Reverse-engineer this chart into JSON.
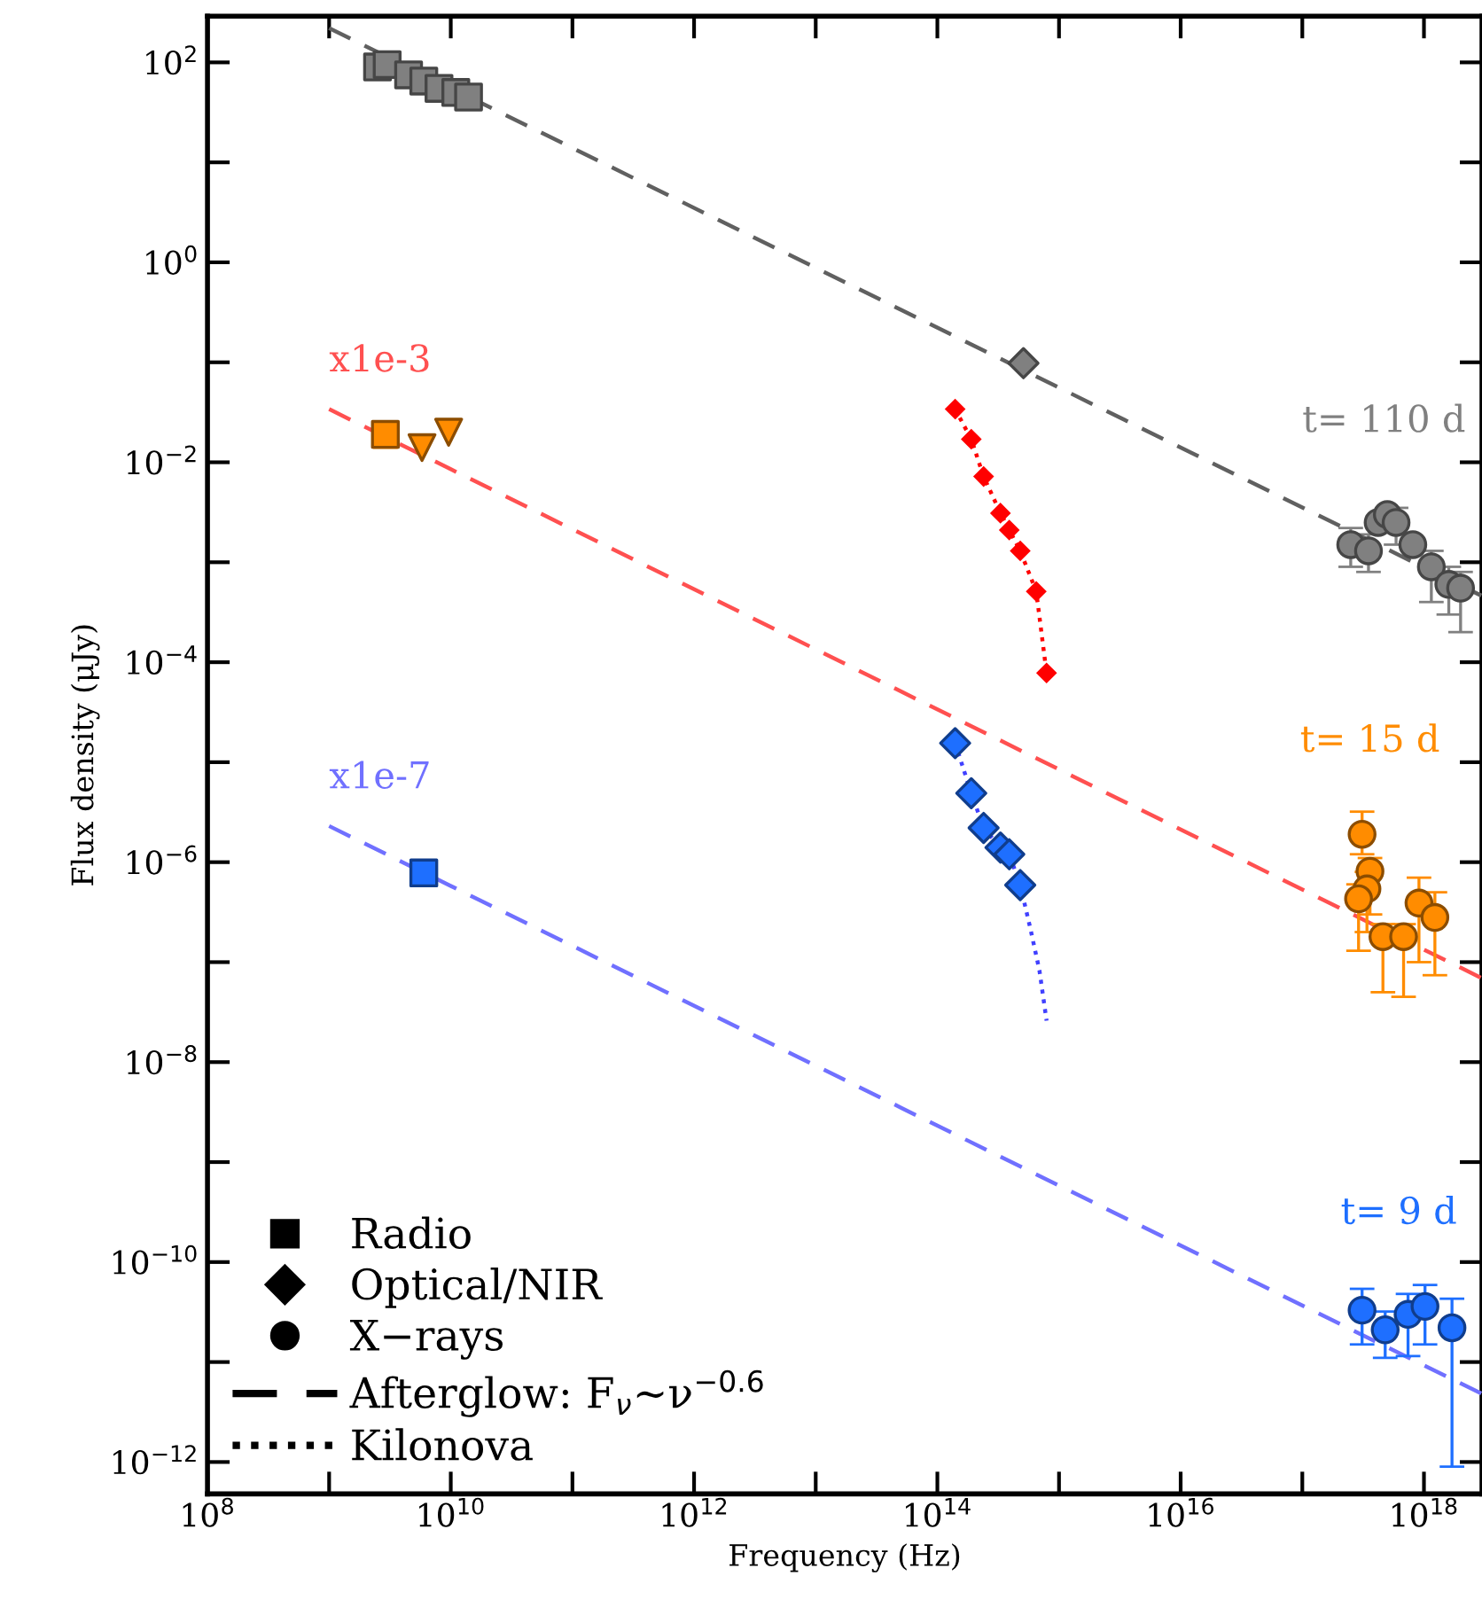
{
  "chart_data": {
    "type": "scatter",
    "xlabel": "Frequency (Hz)",
    "ylabel": "Flux density (μJy)",
    "log": "xy",
    "xlim": [
      100000000.0,
      3e+18
    ],
    "ylim": [
      4.8e-13,
      290
    ],
    "xticks": [
      {
        "value": 100000000.0,
        "label": "10$^{8}$"
      },
      {
        "value": 1000000000.0,
        "label": null
      },
      {
        "value": 10000000000.0,
        "label": "10$^{10}$"
      },
      {
        "value": 100000000000.0,
        "label": null
      },
      {
        "value": 1000000000000.0,
        "label": "10$^{12}$"
      },
      {
        "value": 10000000000000.0,
        "label": null
      },
      {
        "value": 100000000000000.0,
        "label": "10$^{14}$"
      },
      {
        "value": 1000000000000000.0,
        "label": null
      },
      {
        "value": 1e+16,
        "label": "10$^{16}$"
      },
      {
        "value": 1e+17,
        "label": null
      },
      {
        "value": 1e+18,
        "label": "10$^{18}$"
      }
    ],
    "yticks": [
      {
        "value": 1e-12,
        "label": "10$^{−12}$"
      },
      {
        "value": 1e-11,
        "label": null
      },
      {
        "value": 1e-10,
        "label": "10$^{−10}$"
      },
      {
        "value": 1e-09,
        "label": null
      },
      {
        "value": 1e-08,
        "label": "10$^{−8}$"
      },
      {
        "value": 1e-07,
        "label": null
      },
      {
        "value": 1e-06,
        "label": "10$^{−6}$"
      },
      {
        "value": 1e-05,
        "label": null
      },
      {
        "value": 0.0001,
        "label": "10$^{−4}$"
      },
      {
        "value": 0.001,
        "label": null
      },
      {
        "value": 0.01,
        "label": "10$^{−2}$"
      },
      {
        "value": 0.1,
        "label": null
      },
      {
        "value": 1,
        "label": "10$^{0}$"
      },
      {
        "value": 10,
        "label": null
      },
      {
        "value": 100,
        "label": "10$^{2}$"
      }
    ],
    "grid": false,
    "legend": "bottom left",
    "annotations": [
      "Radio",
      "Optical/NIR",
      "X−rays",
      "Afterglow: F$_{ν}$∼ν$^{−0.6}$",
      "Kilonova"
    ],
    "series": [
      {
        "marker": "square",
        "color": "#808080",
        "x": [
          2500000000.0,
          3000000000.0,
          4500000000.0,
          6000000000.0,
          8000000000.0,
          11000000000.0,
          14000000000.0
        ],
        "values": [
          90,
          95,
          75,
          65,
          55,
          50,
          45
        ]
      },
      {
        "marker": "diamond",
        "color": "#808080",
        "x": [
          510000000000000.0
        ],
        "values": [
          0.098
        ]
      },
      {
        "name": "t= 110 d",
        "marker": "circle",
        "color": "#808080",
        "x": [
          2.5e+17,
          3.5e+17,
          4.2e+17,
          5e+17,
          5.9e+17,
          8.1e+17,
          1.15e+18,
          1.6e+18,
          2e+18
        ],
        "values": [
          0.0015,
          0.0013,
          0.0025,
          0.003,
          0.0025,
          0.0015,
          0.0009,
          0.0006,
          0.00055
        ],
        "errors": [
          [
            0.0009,
            0.0022
          ],
          [
            0.0008,
            0.0019
          ],
          null,
          null,
          [
            0.0015,
            0.0035
          ],
          null,
          [
            0.0004,
            0.0013
          ],
          [
            0.0003,
            0.0009
          ],
          [
            0.0002,
            0.0008
          ]
        ]
      },
      {
        "type": "line",
        "line_style": "dashed",
        "marker": "none",
        "color": "#606060",
        "x": [
          1000000000.0,
          3e+18
        ],
        "values": [
          220,
          0.00046
        ]
      },
      {
        "type": "line",
        "line_style": "dotted",
        "marker": "diamond",
        "color": "#ff0000",
        "x": [
          140000000000000.0,
          190000000000000.0,
          240000000000000.0,
          330000000000000.0,
          390000000000000.0,
          480000000000000.0,
          650000000000000.0,
          790000000000000.0
        ],
        "values": [
          0.034,
          0.017,
          0.0072,
          0.0031,
          0.0021,
          0.0013,
          0.00051,
          7.8e-05
        ]
      },
      {
        "name": "x1e-3",
        "type": "line",
        "line_style": "dashed",
        "marker": "none",
        "color": "#ff5050",
        "x": [
          1000000000.0,
          3e+18
        ],
        "values": [
          0.034,
          6.9e-08
        ]
      },
      {
        "marker": "square",
        "color": "#ff8c00",
        "x": [
          2900000000.0
        ],
        "values": [
          0.019
        ],
        "errors": [
          [
            0.014,
            0.022
          ]
        ]
      },
      {
        "marker": "triangle",
        "color": "#ff8c00",
        "x": [
          5800000000.0,
          9600000000.0
        ],
        "values": [
          0.014,
          0.02
        ]
      },
      {
        "name": "t= 15 d",
        "marker": "circle",
        "color": "#ff8c00",
        "x": [
          3.1e+17,
          3.6e+17,
          3.4e+17,
          2.9e+17,
          4.6e+17,
          6.8e+17,
          9.1e+17,
          1.23e+18
        ],
        "values": [
          1.9e-06,
          8.1e-07,
          5.4e-07,
          4.3e-07,
          1.8e-07,
          1.8e-07,
          3.9e-07,
          2.8e-07
        ],
        "errors": [
          [
            1.2e-06,
            3.2e-06
          ],
          [
            3e-07,
            1.1e-06
          ],
          [
            2e-07,
            8e-07
          ],
          [
            1.3e-07,
            6e-07
          ],
          [
            5e-08,
            2.4e-07
          ],
          [
            4.5e-08,
            2.4e-07
          ],
          [
            1e-07,
            7e-07
          ],
          [
            7.4e-08,
            5e-07
          ]
        ]
      },
      {
        "type": "line",
        "line_style": "dotted",
        "marker": "none",
        "color": "#4040ff",
        "x": [
          140000000000000.0,
          190000000000000.0,
          240000000000000.0,
          330000000000000.0,
          390000000000000.0,
          480000000000000.0,
          580000000000000.0,
          690000000000000.0,
          790000000000000.0
        ],
        "values": [
          1.55e-05,
          4.9e-06,
          2.2e-06,
          1.4e-06,
          1.2e-06,
          5.9e-07,
          2.2e-07,
          8.3e-08,
          2.6e-08
        ]
      },
      {
        "marker": "diamond",
        "color": "#1e6fff",
        "x": [
          140000000000000.0,
          190000000000000.0,
          240000000000000.0,
          330000000000000.0,
          390000000000000.0,
          480000000000000.0
        ],
        "values": [
          1.55e-05,
          4.9e-06,
          2.2e-06,
          1.4e-06,
          1.2e-06,
          5.9e-07
        ]
      },
      {
        "name": "x1e-7",
        "type": "line",
        "line_style": "dashed",
        "marker": "none",
        "color": "#7070ff",
        "x": [
          1000000000.0,
          3e+18
        ],
        "values": [
          2.3e-06,
          4.8e-12
        ]
      },
      {
        "marker": "square",
        "color": "#1e6fff",
        "x": [
          6000000000.0
        ],
        "values": [
          7.8e-07
        ],
        "errors": [
          [
            5.8e-07,
            8.5e-07
          ]
        ]
      },
      {
        "name": "t= 9 d",
        "marker": "circle",
        "color": "#1e6fff",
        "x": [
          3.1e+17,
          4.8e+17,
          7.4e+17,
          1.02e+18,
          1.7e+18
        ],
        "values": [
          3.3e-11,
          2.1e-11,
          3e-11,
          3.6e-11,
          2.2e-11
        ],
        "errors": [
          [
            1.5e-11,
            5.4e-11
          ],
          [
            1.1e-11,
            3.2e-11
          ],
          [
            1.15e-11,
            4.8e-11
          ],
          [
            1.5e-11,
            5.9e-11
          ],
          [
            9e-13,
            4.3e-11
          ]
        ]
      }
    ]
  }
}
